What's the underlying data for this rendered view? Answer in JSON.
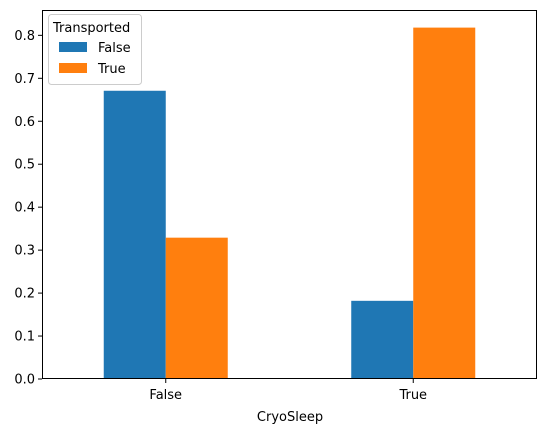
{
  "chart_data": {
    "type": "bar",
    "title": "",
    "xlabel": "CryoSleep",
    "ylabel": "",
    "categories": [
      "False",
      "True"
    ],
    "series": [
      {
        "name": "False",
        "values": [
          0.671,
          0.182
        ],
        "color": "#1f77b4"
      },
      {
        "name": "True",
        "values": [
          0.329,
          0.818
        ],
        "color": "#ff7f0e"
      }
    ],
    "ylim": [
      0,
      0.859
    ],
    "yticks": [
      0.0,
      0.1,
      0.2,
      0.3,
      0.4,
      0.5,
      0.6,
      0.7,
      0.8
    ],
    "ytick_labels": [
      "0.0",
      "0.1",
      "0.2",
      "0.3",
      "0.4",
      "0.5",
      "0.6",
      "0.7",
      "0.8"
    ],
    "legend": {
      "title": "Transported",
      "placement": "top-left"
    },
    "grid": false
  }
}
